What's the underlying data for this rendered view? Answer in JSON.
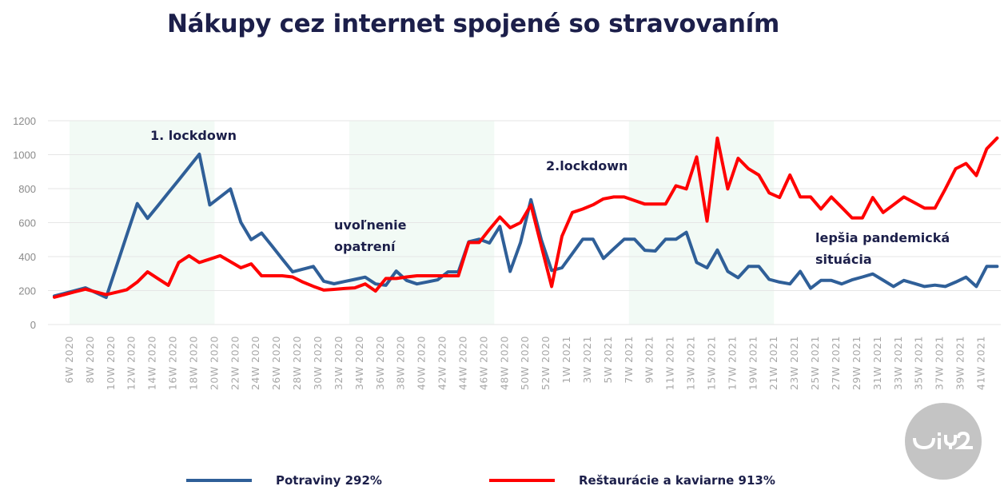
{
  "chart_data": {
    "type": "line",
    "title": "Nákupy cez internet spojené so stravovaním",
    "xlabel": "",
    "ylabel": "",
    "ylim": [
      0,
      1200
    ],
    "yticks": [
      0,
      200,
      400,
      600,
      800,
      1000,
      1200
    ],
    "grid": true,
    "legend_position": "bottom",
    "categories": [
      "5W 2020",
      "6W 2020",
      "7W 2020",
      "8W 2020",
      "9W 2020",
      "10W 2020",
      "11W 2020",
      "12W 2020",
      "13W 2020",
      "14W 2020",
      "15W 2020",
      "16W 2020",
      "17W 2020",
      "18W 2020",
      "19W 2020",
      "20W 2020",
      "21W 2020",
      "22W 2020",
      "23W 2020",
      "24W 2020",
      "25W 2020",
      "26W 2020",
      "27W 2020",
      "28W 2020",
      "29W 2020",
      "30W 2020",
      "31W 2020",
      "32W 2020",
      "33W 2020",
      "34W 2020",
      "35W 2020",
      "36W 2020",
      "37W 2020",
      "38W 2020",
      "39W 2020",
      "40W 2020",
      "41W 2020",
      "42W 2020",
      "43W 2020",
      "44W 2020",
      "45W 2020",
      "46W 2020",
      "47W 2020",
      "48W 2020",
      "49W 2020",
      "50W 2020",
      "51W 2020",
      "52W 2020",
      "53W 2020",
      "1W 2021",
      "2W 2021",
      "3W 2021",
      "4W 2021",
      "5W 2021",
      "6W 2021",
      "7W 2021",
      "8W 2021",
      "9W 2021",
      "10W 2021",
      "11W 2021",
      "12W 2021",
      "13W 2021",
      "14W 2021",
      "15W 2021",
      "16W 2021",
      "17W 2021",
      "18W 2021",
      "19W 2021",
      "20W 2021",
      "21W 2021",
      "22W 2021",
      "23W 2021",
      "24W 2021",
      "25W 2021",
      "26W 2021",
      "27W 2021",
      "28W 2021",
      "29W 2021",
      "30W 2021",
      "31W 2021",
      "32W 2021",
      "33W 2021",
      "34W 2021",
      "35W 2021",
      "36W 2021",
      "37W 2021",
      "38W 2021",
      "39W 2021",
      "40W 2021",
      "41W 2021",
      "42W 2021",
      "43W 2021"
    ],
    "xtick_labels": [
      "6W 2020",
      "8W 2020",
      "10W 2020",
      "12W 2020",
      "14W 2020",
      "16W 2020",
      "18W 2020",
      "20W 2020",
      "22W 2020",
      "24W 2020",
      "26W 2020",
      "28W 2020",
      "30W 2020",
      "32W 2020",
      "34W 2020",
      "36W 2020",
      "38W 2020",
      "40W 2020",
      "42W 2020",
      "44W 2020",
      "46W 2020",
      "48W 2020",
      "50W 2020",
      "52W 2020",
      "1W 2021",
      "3W 2021",
      "5W 2021",
      "7W 2021",
      "9W 2021",
      "11W 2021",
      "13W 2021",
      "15W 2021",
      "17W 2021",
      "19W 2021",
      "21W 2021",
      "23W 2021",
      "25W 2021",
      "27W 2021",
      "29W 2021",
      "31W 2021",
      "33W 2021",
      "35W 2021",
      "37W 2021",
      "39W 2021",
      "41W 2021"
    ],
    "series": [
      {
        "name": "Potraviny 292%",
        "color": "#2f5f98",
        "values": [
          168,
          184,
          200,
          216,
          188,
          160,
          344,
          528,
          712,
          625,
          700,
          776,
          851,
          927,
          1003,
          704,
          751,
          798,
          602,
          500,
          539,
          463,
          386,
          310,
          326,
          342,
          255,
          240,
          253,
          266,
          279,
          239,
          231,
          315,
          260,
          239,
          251,
          263,
          310,
          310,
          487,
          502,
          480,
          578,
          313,
          483,
          735,
          500,
          318,
          334,
          418,
          502,
          502,
          389,
          446,
          502,
          502,
          437,
          433,
          502,
          502,
          543,
          365,
          334,
          439,
          313,
          276,
          342,
          342,
          266,
          250,
          239,
          313,
          213,
          260,
          260,
          239,
          263,
          280,
          298,
          261,
          224,
          260,
          242,
          224,
          232,
          224,
          250,
          279,
          224,
          342,
          342
        ]
      },
      {
        "name": "Reštaurácie a kaviarne 913%",
        "color": "#ff0000",
        "values": [
          161,
          177,
          193,
          208,
          192,
          176,
          190,
          205,
          250,
          310,
          270,
          231,
          365,
          405,
          365,
          385,
          405,
          370,
          334,
          357,
          287,
          287,
          287,
          280,
          250,
          225,
          203,
          207,
          212,
          216,
          239,
          197,
          271,
          271,
          280,
          287,
          287,
          287,
          287,
          287,
          483,
          483,
          560,
          633,
          570,
          600,
          704,
          464,
          224,
          520,
          660,
          680,
          705,
          740,
          751,
          751,
          730,
          709,
          709,
          709,
          817,
          798,
          987,
          609,
          1098,
          798,
          979,
          917,
          880,
          775,
          748,
          880,
          751,
          751,
          680,
          751,
          690,
          628,
          628,
          748,
          660,
          705,
          751,
          718,
          685,
          685,
          798,
          917,
          948,
          877,
          1035,
          1098
        ]
      }
    ],
    "shaded_periods": [
      {
        "from": "6W 2020",
        "to": "20W 2020"
      },
      {
        "from": "33W 2020",
        "to": "47W 2020"
      },
      {
        "from": "7W 2021",
        "to": "21W 2021"
      }
    ],
    "annotations": {
      "lockdown1": "1. lockdown",
      "lockdown2": "2.lockdown",
      "relax_line1": "uvoľnenie",
      "relax_line2": "opatrení",
      "better_line1": "lepšia pandemická",
      "better_line2": "situácia"
    }
  },
  "logo": {
    "text": "ui42",
    "color": "#c4c4c4"
  }
}
